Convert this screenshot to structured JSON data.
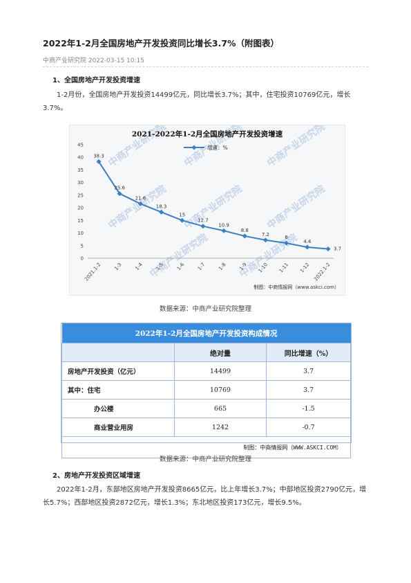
{
  "article": {
    "title": "2022年1-2月全国房地产开发投资同比增长3.7%（附图表）",
    "source": "中商产业研究院",
    "datetime": "2022-03-15 10:15"
  },
  "section1": {
    "heading": "1、全国房地产开发投资增速",
    "paragraph": "1-2月份，全国房地产开发投资14499亿元，同比增长3.7%；其中，住宅投资10769亿元，增长3.7%。"
  },
  "chart_note": "数据来源：中商产业研究院整理",
  "chart_credit": "制图：中商情报网（www.askci.com）",
  "watermark": "中商产业研究院",
  "chart_data": {
    "type": "line",
    "title": "2021-2022年1-2月全国房地产开发投资增速",
    "legend": "增速：%",
    "x": [
      "2021.1-2",
      "1-3",
      "1-4",
      "1-5",
      "1-6",
      "1-7",
      "1-8",
      "1-9",
      "1-10",
      "1-11",
      "1-12",
      "2022.1-2"
    ],
    "series": [
      {
        "name": "增速：%",
        "values": [
          38.3,
          25.6,
          21.6,
          18.3,
          15,
          12.7,
          10.9,
          8.8,
          7.2,
          6,
          4.4,
          3.7
        ]
      }
    ],
    "ylim": [
      0,
      45
    ],
    "yticks": [
      0,
      5,
      10,
      15,
      20,
      25,
      30,
      35,
      40,
      45
    ],
    "grid": false,
    "legend_position": "top",
    "color": "#3b7fc4"
  },
  "table": {
    "caption": "2022年1-2月全国房地产开发投资构成情况",
    "headers": [
      "",
      "绝对量",
      "同比增速（%）"
    ],
    "rows": [
      {
        "label": "房地产开发投资（亿元）",
        "value": "14499",
        "growth": "3.7"
      },
      {
        "label": "其中：住宅",
        "value": "10769",
        "growth": "3.7"
      },
      {
        "label": "办公楼",
        "value": "665",
        "growth": "-1.5"
      },
      {
        "label": "商业营业用房",
        "value": "1242",
        "growth": "-0.7"
      }
    ],
    "credit": "制图：中商情报网（WWW.ASKCI.COM）"
  },
  "table_note": "数据来源：中商产业研究院整理",
  "section2": {
    "heading": "2、房地产开发投资区域增速",
    "paragraph": "2022年1-2月，东部地区房地产开发投资8665亿元，比上年增长3.7%；中部地区投资2790亿元，增长5.7%；西部地区投资2872亿元，增长1.3%；东北地区投资173亿元，增长9.5%。"
  }
}
